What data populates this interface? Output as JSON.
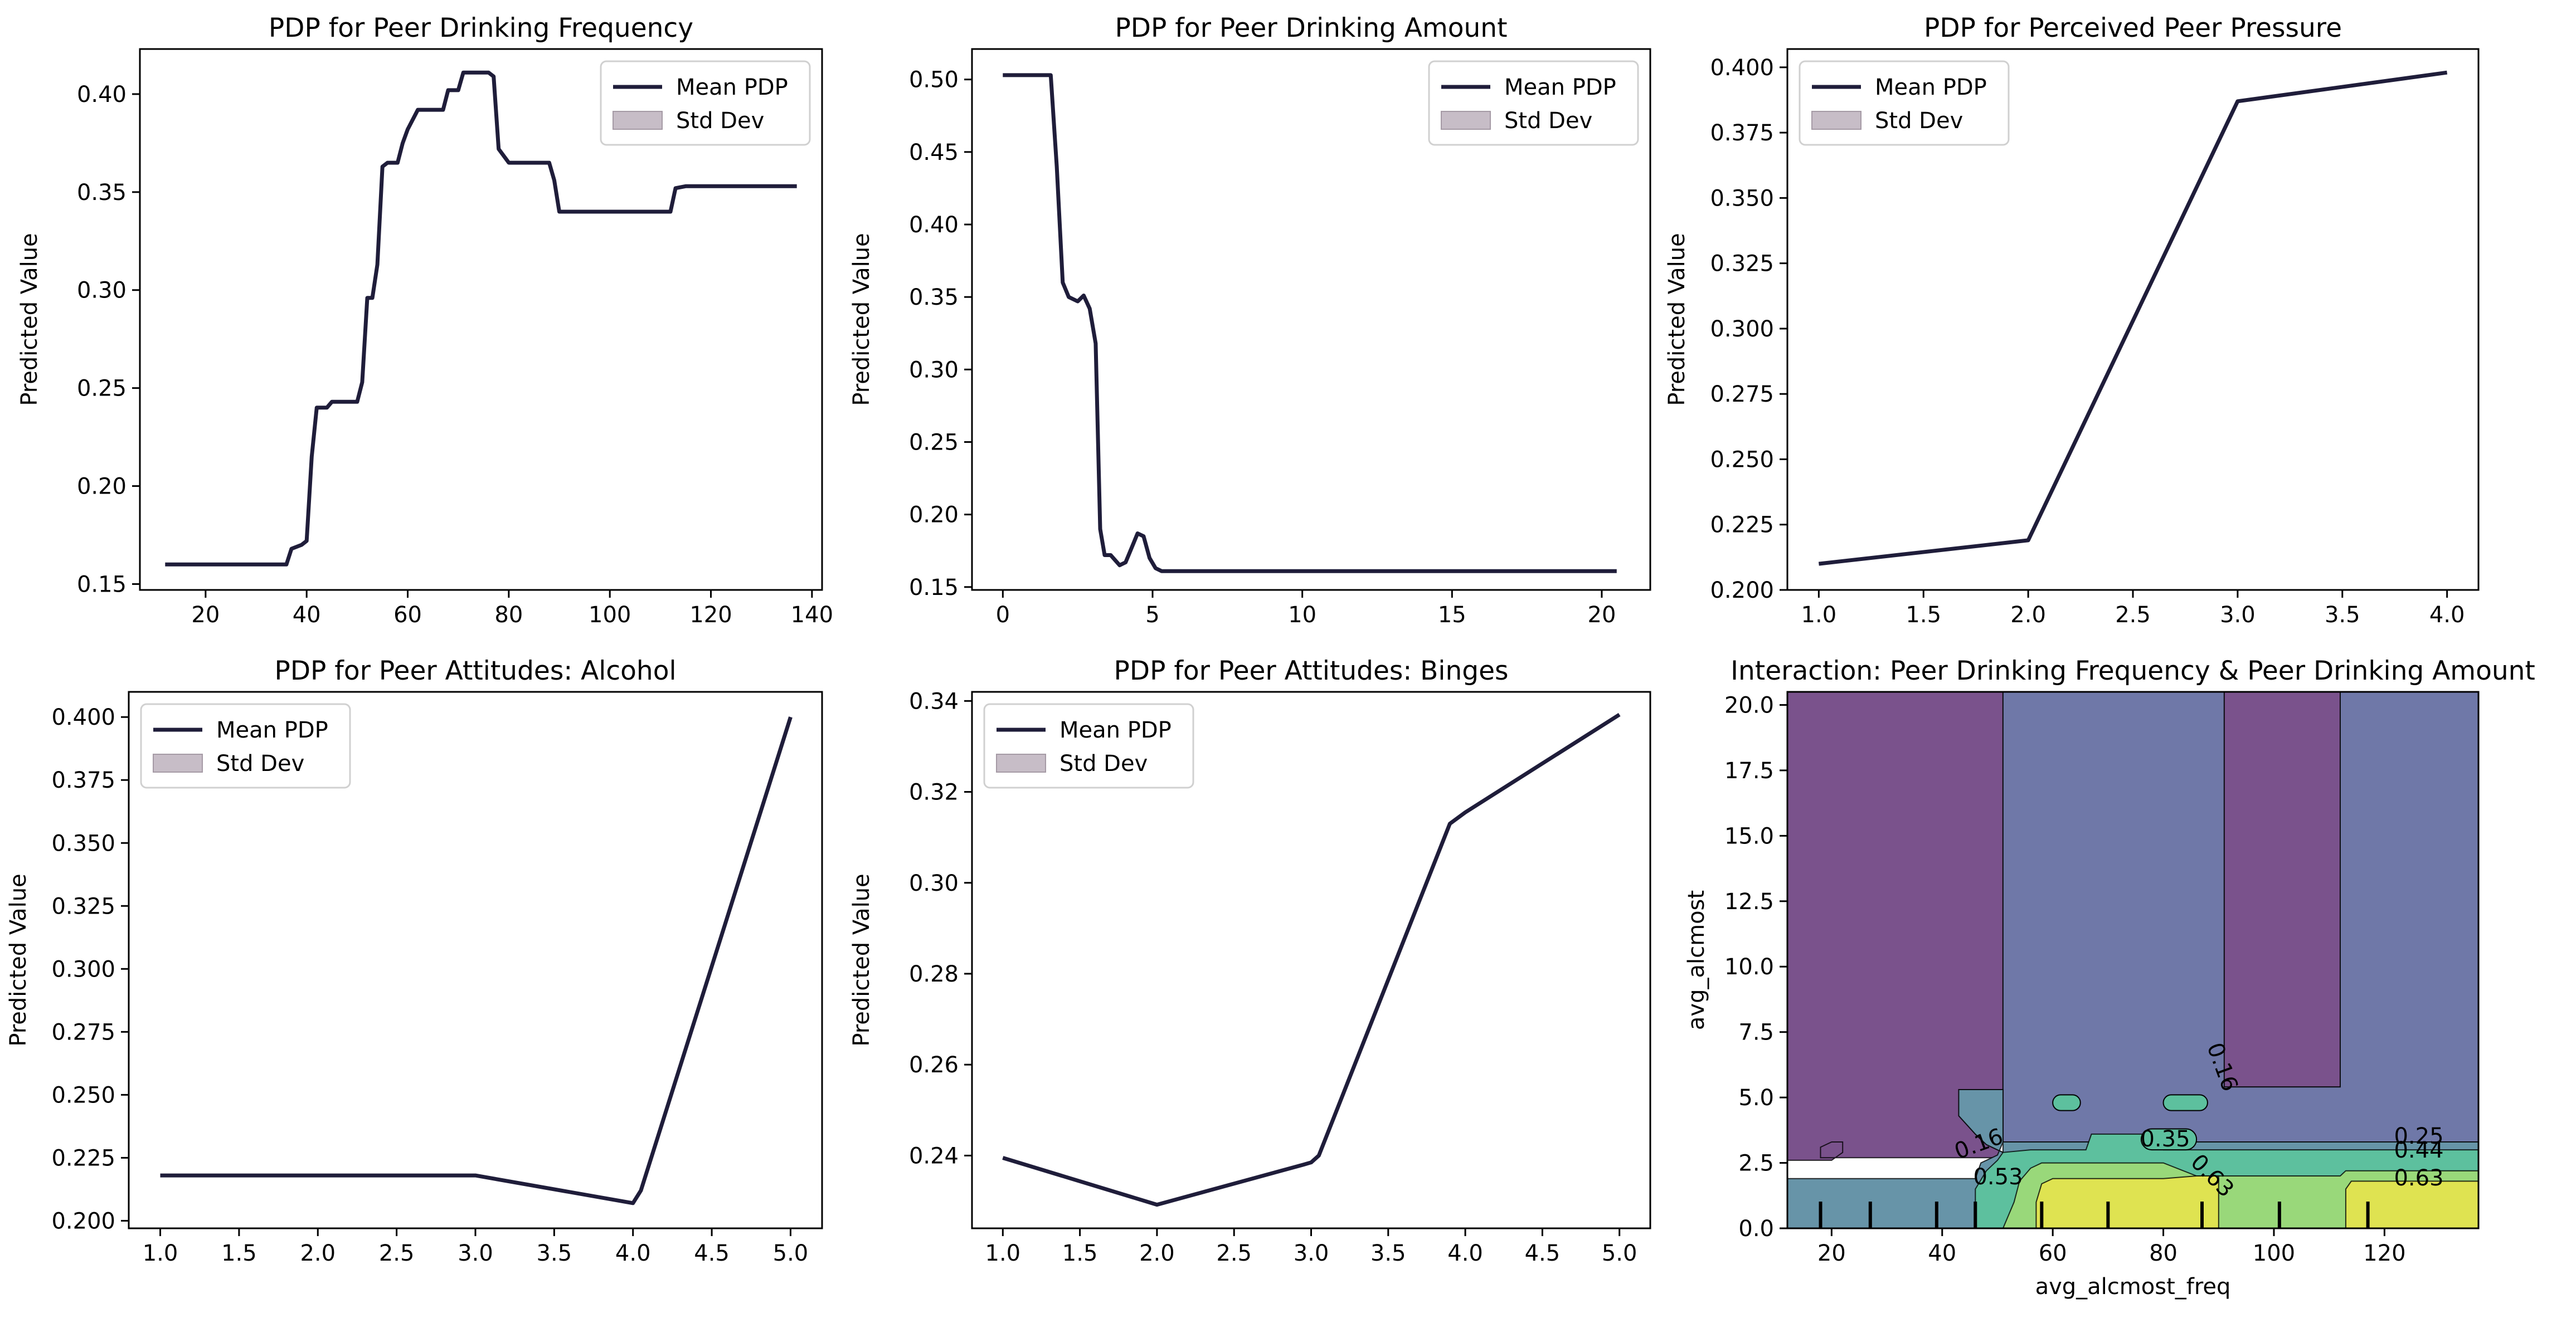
{
  "figure": {
    "line_color": "#1f1d3a",
    "band_color": "#c7bdc7"
  },
  "chart_data": [
    {
      "type": "line",
      "title": "PDP for Peer Drinking Frequency",
      "xlabel": "",
      "ylabel": "Predicted Value",
      "xlim": [
        7,
        142
      ],
      "ylim": [
        0.147,
        0.423
      ],
      "xticks": [
        20,
        40,
        60,
        80,
        100,
        120,
        140
      ],
      "yticks": [
        0.15,
        0.2,
        0.25,
        0.3,
        0.35,
        0.4
      ],
      "legend": {
        "position": "upper-right",
        "entries": [
          "Mean PDP",
          "Std Dev"
        ]
      },
      "series": [
        {
          "name": "Mean PDP",
          "x": [
            12,
            36,
            37,
            39,
            40,
            41,
            42,
            44,
            45,
            50,
            51,
            52,
            53,
            54,
            55,
            56,
            58,
            59,
            60,
            62,
            66,
            67,
            68,
            70,
            71,
            76,
            77,
            78,
            80,
            88,
            89,
            90,
            100,
            112,
            113,
            115,
            120,
            137
          ],
          "y": [
            0.16,
            0.16,
            0.168,
            0.17,
            0.172,
            0.215,
            0.24,
            0.24,
            0.243,
            0.243,
            0.253,
            0.296,
            0.296,
            0.313,
            0.363,
            0.365,
            0.365,
            0.375,
            0.382,
            0.392,
            0.392,
            0.392,
            0.402,
            0.402,
            0.411,
            0.411,
            0.409,
            0.372,
            0.365,
            0.365,
            0.356,
            0.34,
            0.34,
            0.34,
            0.352,
            0.353,
            0.353,
            0.353
          ]
        }
      ]
    },
    {
      "type": "line",
      "title": "PDP for Peer Drinking Amount",
      "xlabel": "",
      "ylabel": "Predicted Value",
      "xlim": [
        -1.03,
        21.62
      ],
      "ylim": [
        0.148,
        0.521
      ],
      "xticks": [
        0,
        5,
        10,
        15,
        20
      ],
      "yticks": [
        0.15,
        0.2,
        0.25,
        0.3,
        0.35,
        0.4,
        0.45,
        0.5
      ],
      "legend": {
        "position": "upper-right",
        "entries": [
          "Mean PDP",
          "Std Dev"
        ]
      },
      "series": [
        {
          "name": "Mean PDP",
          "x": [
            0,
            0.5,
            1.6,
            1.8,
            2.0,
            2.2,
            2.5,
            2.7,
            2.9,
            3.1,
            3.25,
            3.4,
            3.6,
            3.9,
            4.1,
            4.3,
            4.5,
            4.7,
            4.9,
            5.1,
            5.3,
            5.5,
            6,
            8,
            10,
            15,
            20.5
          ],
          "y": [
            0.503,
            0.503,
            0.503,
            0.44,
            0.36,
            0.35,
            0.347,
            0.351,
            0.342,
            0.318,
            0.19,
            0.172,
            0.172,
            0.165,
            0.167,
            0.177,
            0.187,
            0.185,
            0.17,
            0.163,
            0.161,
            0.161,
            0.161,
            0.161,
            0.161,
            0.161,
            0.161
          ]
        }
      ]
    },
    {
      "type": "line",
      "title": "PDP for Perceived Peer Pressure",
      "xlabel": "",
      "ylabel": "Predicted Value",
      "xlim": [
        0.85,
        4.15
      ],
      "ylim": [
        0.2,
        0.407
      ],
      "xticks": [
        1.0,
        1.5,
        2.0,
        2.5,
        3.0,
        3.5,
        4.0
      ],
      "yticks": [
        0.2,
        0.225,
        0.25,
        0.275,
        0.3,
        0.325,
        0.35,
        0.375,
        0.4
      ],
      "legend": {
        "position": "upper-left",
        "entries": [
          "Mean PDP",
          "Std Dev"
        ]
      },
      "series": [
        {
          "name": "Mean PDP",
          "x": [
            1.0,
            2.0,
            3.0,
            4.0
          ],
          "y": [
            0.21,
            0.219,
            0.387,
            0.398
          ]
        }
      ]
    },
    {
      "type": "line",
      "title": "PDP for Peer Attitudes: Alcohol",
      "xlabel": "",
      "ylabel": "Predicted Value",
      "xlim": [
        0.8,
        5.2
      ],
      "ylim": [
        0.197,
        0.41
      ],
      "xticks": [
        1.0,
        1.5,
        2.0,
        2.5,
        3.0,
        3.5,
        4.0,
        4.5,
        5.0
      ],
      "yticks": [
        0.2,
        0.225,
        0.25,
        0.275,
        0.3,
        0.325,
        0.35,
        0.375,
        0.4
      ],
      "legend": {
        "position": "upper-left",
        "entries": [
          "Mean PDP",
          "Std Dev"
        ]
      },
      "series": [
        {
          "name": "Mean PDP",
          "x": [
            1.0,
            2.0,
            3.0,
            4.0,
            4.05,
            5.0
          ],
          "y": [
            0.218,
            0.218,
            0.218,
            0.207,
            0.212,
            0.4
          ]
        }
      ]
    },
    {
      "type": "line",
      "title": "PDP for Peer Attitudes: Binges",
      "xlabel": "",
      "ylabel": "Predicted Value",
      "xlim": [
        0.8,
        5.2
      ],
      "ylim": [
        0.224,
        0.342
      ],
      "xticks": [
        1.0,
        1.5,
        2.0,
        2.5,
        3.0,
        3.5,
        4.0,
        4.5,
        5.0
      ],
      "yticks": [
        0.24,
        0.26,
        0.28,
        0.3,
        0.32,
        0.34
      ],
      "legend": {
        "position": "upper-left",
        "entries": [
          "Mean PDP",
          "Std Dev"
        ]
      },
      "series": [
        {
          "name": "Mean PDP",
          "x": [
            1.0,
            2.0,
            2.95,
            3.0,
            3.05,
            3.9,
            4.0,
            5.0
          ],
          "y": [
            0.2395,
            0.2292,
            0.238,
            0.2385,
            0.24,
            0.313,
            0.3155,
            0.337
          ]
        }
      ]
    },
    {
      "type": "heatmap",
      "title": "Interaction: Peer Drinking Frequency & Peer Drinking Amount",
      "xlabel": "avg_alcmost_freq",
      "ylabel": "avg_alcmost",
      "xlim": [
        12,
        137
      ],
      "ylim": [
        0,
        20.5
      ],
      "xticks": [
        20,
        40,
        60,
        80,
        100,
        120
      ],
      "yticks": [
        0.0,
        2.5,
        5.0,
        7.5,
        10.0,
        12.5,
        15.0,
        17.5,
        20.0
      ],
      "contour_labels": [
        "0.16",
        "0.16",
        "0.25",
        "0.35",
        "0.44",
        "0.53",
        "0.63",
        "0.63"
      ],
      "regions": [
        {
          "color": "#7a528c",
          "level": "<0.16",
          "polygons": [
            [
              [
                12,
                20.5
              ],
              [
                51,
                20.5
              ],
              [
                51,
                5.3
              ],
              [
                43,
                5.3
              ],
              [
                43,
                4.3
              ],
              [
                46,
                3.6
              ],
              [
                48,
                3.2
              ],
              [
                50,
                3.0
              ],
              [
                51,
                2.9
              ],
              [
                51,
                2.7
              ],
              [
                18,
                2.7
              ],
              [
                18,
                3.1
              ],
              [
                20,
                3.3
              ],
              [
                22,
                3.3
              ],
              [
                22,
                2.9
              ],
              [
                20,
                2.6
              ],
              [
                12,
                2.6
              ]
            ],
            [
              [
                91,
                20.5
              ],
              [
                112,
                20.5
              ],
              [
                112,
                5.4
              ],
              [
                91,
                5.4
              ]
            ]
          ]
        },
        {
          "color": "#6f78a8",
          "level": "0.16-0.25",
          "polygons": [
            [
              [
                51,
                20.5
              ],
              [
                91,
                20.5
              ],
              [
                91,
                5.4
              ],
              [
                112,
                5.4
              ],
              [
                112,
                20.5
              ],
              [
                137,
                20.5
              ],
              [
                137,
                3.3
              ],
              [
                51,
                3.3
              ],
              [
                51,
                5.3
              ]
            ]
          ]
        },
        {
          "color": "#6794a8",
          "level": "0.25-0.35",
          "polygons": [
            [
              [
                12,
                0
              ],
              [
                137,
                0
              ],
              [
                137,
                3.3
              ],
              [
                51,
                3.3
              ],
              [
                51,
                2.9
              ],
              [
                50,
                3.0
              ],
              [
                48,
                3.2
              ],
              [
                46,
                3.6
              ],
              [
                43,
                4.3
              ],
              [
                43,
                5.3
              ],
              [
                51,
                5.3
              ],
              [
                51,
                3.3
              ],
              [
                50,
                2.8
              ],
              [
                47,
                2.5
              ],
              [
                46,
                1.9
              ],
              [
                12,
                1.9
              ]
            ]
          ]
        },
        {
          "color": "#5dc09e",
          "level": "0.35-0.53",
          "polygons": [
            [
              [
                46,
                0
              ],
              [
                137,
                0
              ],
              [
                137,
                3.0
              ],
              [
                80,
                3.0
              ],
              [
                78,
                3.6
              ],
              [
                67,
                3.6
              ],
              [
                66,
                3.0
              ],
              [
                56,
                3.0
              ],
              [
                51,
                2.9
              ],
              [
                50,
                2.6
              ],
              [
                48,
                2.2
              ],
              [
                46,
                1.5
              ]
            ]
          ]
        },
        {
          "color": "#99d87a",
          "level": "0.53-0.63",
          "polygons": [
            [
              [
                51,
                0
              ],
              [
                137,
                0
              ],
              [
                137,
                2.2
              ],
              [
                113,
                2.2
              ],
              [
                112,
                2.0
              ],
              [
                86,
                2.0
              ],
              [
                80,
                2.5
              ],
              [
                58,
                2.5
              ],
              [
                56,
                2.3
              ],
              [
                54,
                1.8
              ],
              [
                53,
                1.0
              ],
              [
                52,
                0.5
              ]
            ]
          ]
        },
        {
          "color": "#dfe351",
          "level": ">0.63",
          "polygons": [
            [
              [
                57,
                0
              ],
              [
                90,
                0
              ],
              [
                90,
                2.0
              ],
              [
                86,
                2.0
              ],
              [
                80,
                1.9
              ],
              [
                60,
                1.9
              ],
              [
                58,
                1.7
              ],
              [
                57,
                1.0
              ]
            ],
            [
              [
                113,
                0
              ],
              [
                137,
                0
              ],
              [
                137,
                1.8
              ],
              [
                114,
                1.8
              ],
              [
                113,
                1.5
              ]
            ]
          ]
        }
      ],
      "blobs": [
        {
          "x": [
            60,
            65
          ],
          "y": [
            4.5,
            5.1
          ],
          "color": "#5dc09e"
        },
        {
          "x": [
            80,
            88
          ],
          "y": [
            4.5,
            5.1
          ],
          "color": "#5dc09e"
        },
        {
          "x": [
            76,
            86
          ],
          "y": [
            3.0,
            3.8
          ],
          "color": "#5dc09e"
        }
      ],
      "rug_x": [
        18,
        27,
        39,
        46,
        58,
        70,
        87,
        101,
        117
      ]
    }
  ]
}
